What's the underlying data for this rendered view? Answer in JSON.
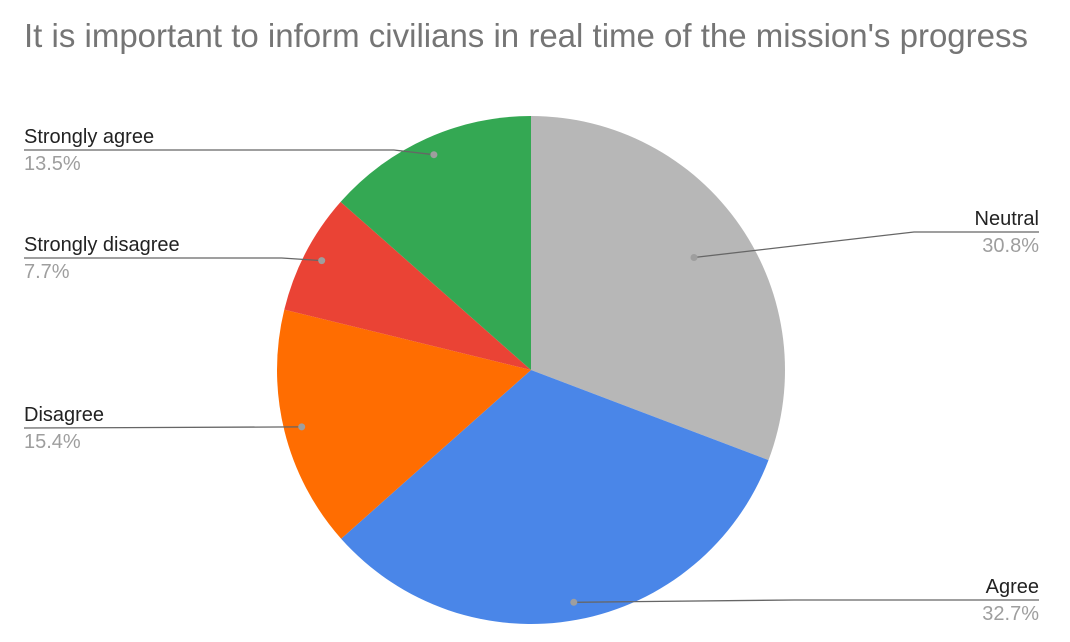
{
  "chart_data": {
    "type": "pie",
    "title": "It is important to inform civilians in real time of the mission's progress",
    "slices": [
      {
        "label": "Neutral",
        "value": 30.8,
        "value_label": "30.8%",
        "color": "#b7b7b7"
      },
      {
        "label": "Agree",
        "value": 32.7,
        "value_label": "32.7%",
        "color": "#4a86e8"
      },
      {
        "label": "Disagree",
        "value": 15.4,
        "value_label": "15.4%",
        "color": "#ff6d01"
      },
      {
        "label": "Strongly disagree",
        "value": 7.7,
        "value_label": "7.7%",
        "color": "#ea4335"
      },
      {
        "label": "Strongly agree",
        "value": 13.5,
        "value_label": "13.5%",
        "color": "#34a853"
      }
    ],
    "start_angle": "12 o'clock",
    "direction": "clockwise",
    "legend": "none (callout labels)"
  }
}
